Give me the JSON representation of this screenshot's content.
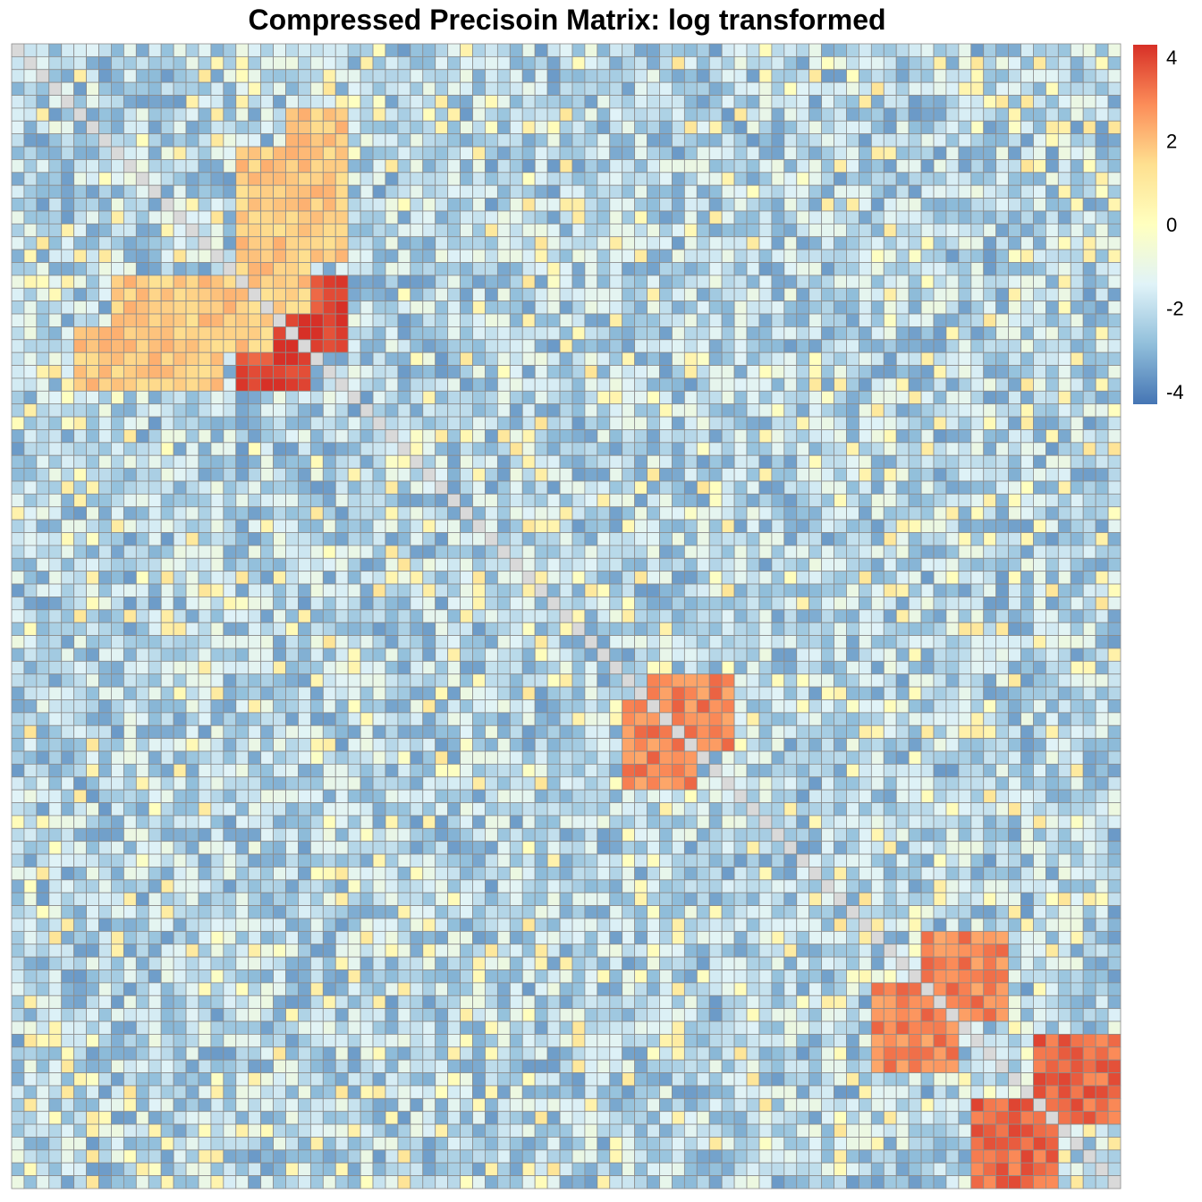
{
  "chart_data": {
    "type": "heatmap",
    "title": "Compressed Precisoin Matrix: log transformed",
    "rows": 89,
    "cols": 89,
    "value_range": [
      -4.3,
      4.3
    ],
    "colorbar": {
      "ticks": [
        4,
        2,
        0,
        -2,
        -4
      ],
      "tick_labels": [
        "4",
        "2",
        "0",
        "-2",
        "-4"
      ],
      "colors": [
        "#4575B4",
        "#91BFDB",
        "#E0F3F8",
        "#FFFFBF",
        "#FEE090",
        "#FC8D59",
        "#D73027"
      ]
    },
    "diagonal_color": "#D9D9D9",
    "cell_border_color": "#8C8C8C",
    "blocks": [
      {
        "rows": [
          22,
          26
        ],
        "cols": [
          18,
          23
        ],
        "level": "high",
        "value": 4.0
      },
      {
        "rows": [
          51,
          57
        ],
        "cols": [
          49,
          54
        ],
        "level": "high",
        "value": 3.0
      },
      {
        "rows": [
          73,
          79
        ],
        "cols": [
          69,
          75
        ],
        "level": "high",
        "value": 3.0
      },
      {
        "rows": [
          82,
          88
        ],
        "cols": [
          77,
          83
        ],
        "level": "high",
        "value": 3.5
      },
      {
        "rows": [
          8,
          20
        ],
        "cols": [
          18,
          23
        ],
        "level": "mid",
        "value": 1.8
      },
      {
        "rows": [
          22,
          26
        ],
        "cols": [
          5,
          16
        ],
        "level": "mid",
        "value": 1.8
      }
    ]
  }
}
